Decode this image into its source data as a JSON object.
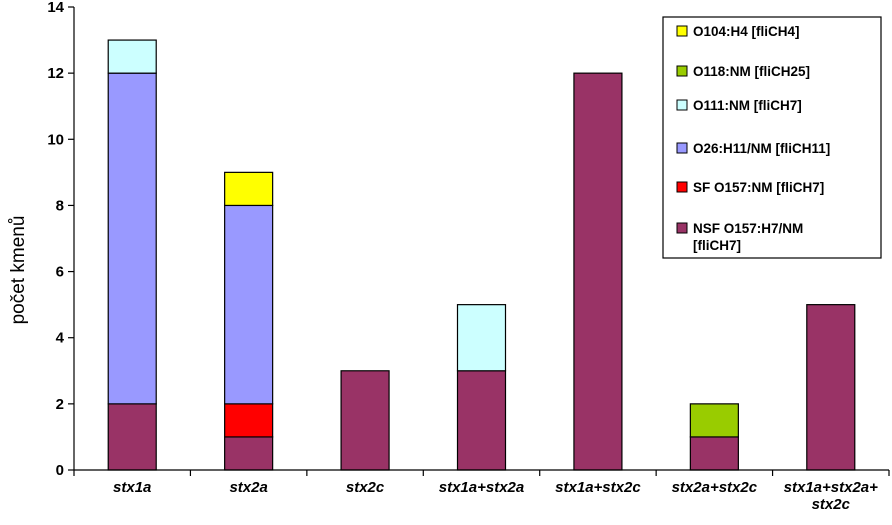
{
  "chart_data": {
    "type": "bar",
    "stacked": true,
    "title": "",
    "xlabel": "",
    "ylabel": "počet kmenů",
    "ylim": [
      0,
      14
    ],
    "yticks": [
      "0",
      "2",
      "4",
      "6",
      "8",
      "10",
      "12",
      "14"
    ],
    "grid": false,
    "legend_position": "top-right",
    "categories": [
      [
        "stx1a"
      ],
      [
        "stx2a"
      ],
      [
        "stx2c"
      ],
      [
        "stx1a+stx2a"
      ],
      [
        "stx1a+stx2c"
      ],
      [
        "stx2a+stx2c"
      ],
      [
        "stx1a+stx2a+",
        "stx2c"
      ]
    ],
    "series": [
      {
        "name": "NSF O157:H7/NM [fliCH7]",
        "label_lines": [
          "NSF O157:H7/NM",
          "[fliCH7]"
        ],
        "color": "#993366",
        "values": [
          2,
          1,
          3,
          3,
          12,
          1,
          5
        ]
      },
      {
        "name": "SF O157:NM [fliCH7]",
        "label_lines": [
          "SF O157:NM [fliCH7]"
        ],
        "color": "#ff0000",
        "values": [
          0,
          1,
          0,
          0,
          0,
          0,
          0
        ]
      },
      {
        "name": "O26:H11/NM [fliCH11]",
        "label_lines": [
          "O26:H11/NM [fliCH11]"
        ],
        "color": "#9999ff",
        "values": [
          10,
          6,
          0,
          0,
          0,
          0,
          0
        ]
      },
      {
        "name": "O111:NM [fliCH7]",
        "label_lines": [
          "O111:NM [fliCH7]"
        ],
        "color": "#ccffff",
        "values": [
          1,
          0,
          0,
          2,
          0,
          0,
          0
        ]
      },
      {
        "name": "O118:NM [fliCH25]",
        "label_lines": [
          "O118:NM [fliCH25]"
        ],
        "color": "#99cc00",
        "values": [
          0,
          0,
          0,
          0,
          0,
          1,
          0
        ]
      },
      {
        "name": "O104:H4 [fliCH4]",
        "label_lines": [
          "O104:H4 [fliCH4]"
        ],
        "color": "#ffff00",
        "values": [
          0,
          1,
          0,
          0,
          0,
          0,
          0
        ]
      }
    ],
    "legend_order": [
      5,
      4,
      3,
      2,
      1,
      0
    ]
  }
}
